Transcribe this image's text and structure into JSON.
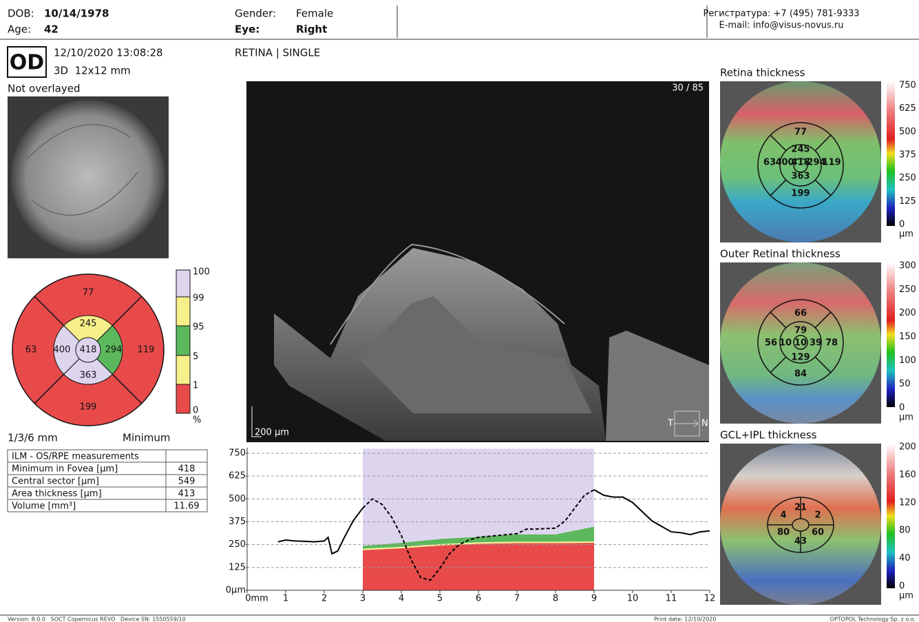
{
  "header": {
    "dob_label": "DOB:",
    "dob": "10/14/1978",
    "age_label": "Age:",
    "age": "42",
    "gender_label": "Gender:",
    "gender": "Female",
    "eye_label": "Eye:",
    "eye": "Right",
    "phone": "Регистратура: +7 (495) 781-9333",
    "email": "E-mail: info@visus-novus.ru"
  },
  "scan": {
    "eye": "OD",
    "datetime": "12/10/2020 13:08:28",
    "protocol": "3D  12x12 mm",
    "overlay": "Not overlayed",
    "mode": "RETINA | SINGLE",
    "frame": "30 / 85",
    "scale": "200 µm",
    "temporal": "T",
    "nasal": "N"
  },
  "etdrs": {
    "values": [
      "77",
      "245",
      "63",
      "400",
      "418",
      "294",
      "119",
      "363",
      "199"
    ],
    "legend": [
      "100",
      "99",
      "95",
      "5",
      "1",
      "0",
      "%"
    ],
    "grid_label": "1/3/6 mm",
    "method": "Minimum"
  },
  "table": {
    "title": "ILM - OS/RPE measurements",
    "rows": [
      [
        "Minimum in Fovea [µm]",
        "418"
      ],
      [
        "Central sector [µm]",
        "549"
      ],
      [
        "Area thickness [µm]",
        "413"
      ],
      [
        "Volume [mm³]",
        "11.69"
      ]
    ]
  },
  "maps": [
    {
      "title": "Retina thickness",
      "scale": [
        "750",
        "625",
        "500",
        "375",
        "250",
        "125",
        "0",
        "µm"
      ],
      "values": [
        "77",
        "245",
        "63",
        "400",
        "418",
        "294",
        "119",
        "363",
        "199"
      ]
    },
    {
      "title": "Outer Retinal thickness",
      "scale": [
        "300",
        "250",
        "200",
        "150",
        "100",
        "50",
        "0",
        "µm"
      ],
      "values": [
        "66",
        "79",
        "56",
        "10",
        "10",
        "39",
        "78",
        "129",
        "84"
      ]
    },
    {
      "title": "GCL+IPL thickness",
      "scale": [
        "200",
        "160",
        "120",
        "80",
        "40",
        "0",
        "µm"
      ],
      "values": [
        "21",
        "4",
        "2",
        "80",
        "60",
        "43"
      ]
    }
  ],
  "chart_data": {
    "type": "line",
    "x": [
      0.8,
      1,
      1.25,
      1.5,
      1.75,
      2,
      2.1,
      2.2,
      2.35,
      2.5,
      2.75,
      3,
      3.25,
      3.5,
      3.75,
      4,
      4.25,
      4.5,
      4.75,
      5,
      5.25,
      5.5,
      5.75,
      6,
      6.5,
      7,
      7.25,
      7.5,
      8,
      8.25,
      8.5,
      8.75,
      9,
      9.25,
      9.5,
      9.75,
      10,
      10.25,
      10.5,
      10.75,
      11,
      11.25,
      11.5,
      11.75,
      12
    ],
    "series": [
      {
        "color": "#000000",
        "values": [
          265,
          275,
          270,
          268,
          265,
          270,
          290,
          200,
          215,
          280,
          380,
          450,
          null,
          null,
          null,
          null,
          null,
          null,
          null,
          null,
          null,
          null,
          null,
          null,
          null,
          null,
          null,
          null,
          null,
          null,
          null,
          null,
          550,
          520,
          510,
          510,
          480,
          430,
          380,
          350,
          320,
          315,
          305,
          320,
          325
        ]
      },
      {
        "color": "#000000",
        "dash": true,
        "values": [
          null,
          null,
          null,
          null,
          null,
          null,
          null,
          null,
          null,
          null,
          null,
          450,
          500,
          470,
          400,
          300,
          170,
          70,
          55,
          120,
          200,
          250,
          275,
          290,
          300,
          310,
          335,
          335,
          340,
          380,
          450,
          520,
          550,
          null,
          null,
          null,
          null,
          null,
          null,
          null,
          null,
          null,
          null,
          null,
          null
        ]
      }
    ],
    "bands_x": [
      3,
      4,
      5,
      6,
      7,
      8,
      9
    ],
    "bands": [
      {
        "color": "#e84a4a",
        "values": [
          220,
          230,
          245,
          255,
          258,
          258,
          260
        ]
      },
      {
        "color": "#f5f09a",
        "values": [
          8,
          8,
          8,
          8,
          8,
          8,
          8
        ]
      },
      {
        "color": "#5cb85c",
        "values": [
          15,
          22,
          28,
          30,
          40,
          40,
          80
        ]
      },
      {
        "color": "#ddd5ee",
        "values": [
          532,
          515,
          494,
          482,
          469,
          469,
          427
        ]
      }
    ],
    "xlim": [
      0,
      12
    ],
    "ylim": [
      0,
      780
    ],
    "xticks": [
      {
        "value": 0,
        "label": "0mm"
      },
      1,
      2,
      3,
      4,
      5,
      6,
      7,
      8,
      9,
      10,
      11,
      12
    ],
    "yticks": [
      {
        "value": 0,
        "label": "0µm"
      },
      125,
      250,
      375,
      500,
      625,
      750
    ],
    "grid": true
  },
  "footer": {
    "version": "Version: 8.0.0   SOCT Copernicus REVO   Device SN: 1550559/10",
    "print_date": "Print date: 12/10/2020",
    "company": "OPTOPOL Technology Sp. z o.o."
  }
}
